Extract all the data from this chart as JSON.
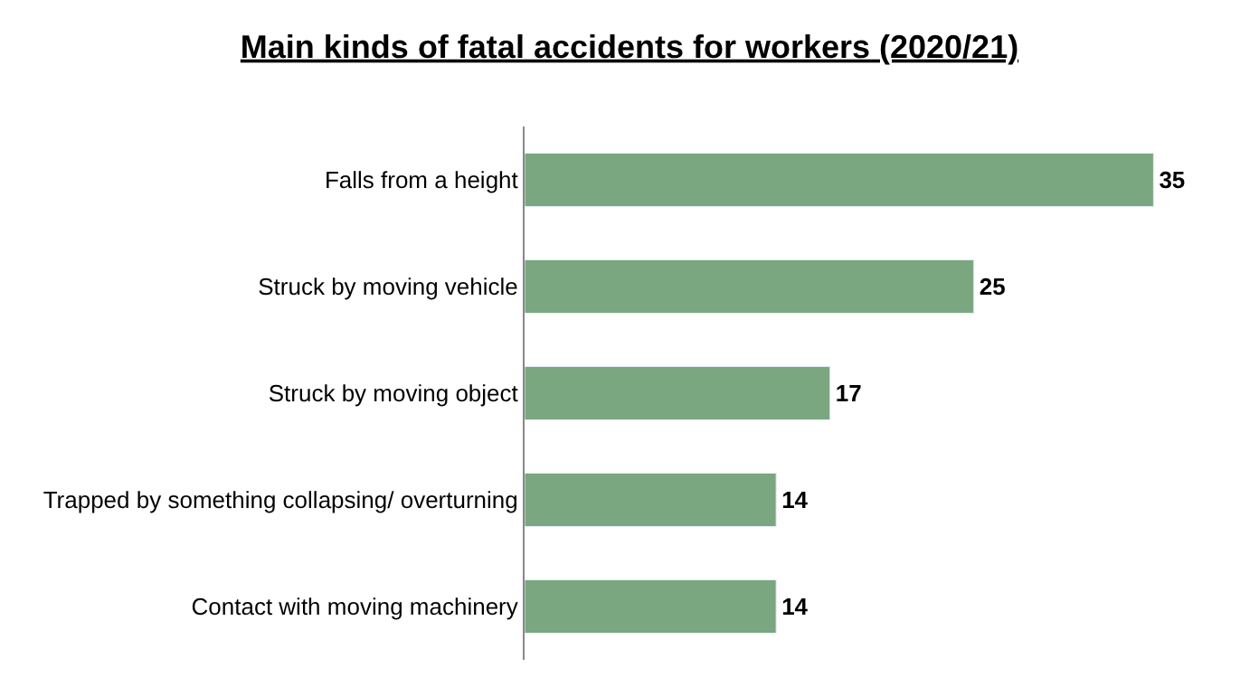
{
  "chart_data": {
    "type": "bar",
    "orientation": "horizontal",
    "title": "Main kinds of fatal accidents for workers (2020/21)",
    "categories": [
      "Falls from a height",
      "Struck by moving vehicle",
      "Struck by moving object",
      "Trapped by something collapsing/ overturning",
      "Contact with moving machinery"
    ],
    "values": [
      35,
      25,
      17,
      14,
      14
    ],
    "color": "#7aa77f",
    "data_labels": true,
    "tick_labels": "y"
  }
}
